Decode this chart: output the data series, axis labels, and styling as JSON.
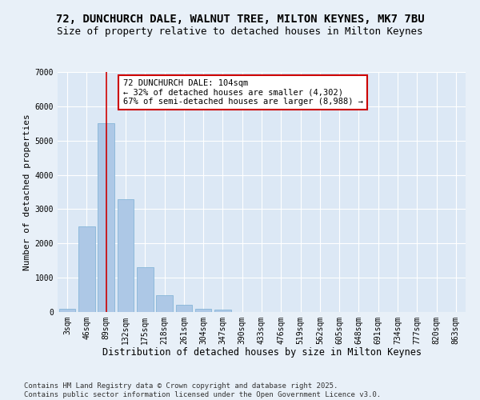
{
  "title": "72, DUNCHURCH DALE, WALNUT TREE, MILTON KEYNES, MK7 7BU",
  "subtitle": "Size of property relative to detached houses in Milton Keynes",
  "xlabel": "Distribution of detached houses by size in Milton Keynes",
  "ylabel": "Number of detached properties",
  "categories": [
    "3sqm",
    "46sqm",
    "89sqm",
    "132sqm",
    "175sqm",
    "218sqm",
    "261sqm",
    "304sqm",
    "347sqm",
    "390sqm",
    "433sqm",
    "476sqm",
    "519sqm",
    "562sqm",
    "605sqm",
    "648sqm",
    "691sqm",
    "734sqm",
    "777sqm",
    "820sqm",
    "863sqm"
  ],
  "values": [
    100,
    2500,
    5500,
    3300,
    1300,
    500,
    220,
    100,
    60,
    0,
    0,
    0,
    0,
    0,
    0,
    0,
    0,
    0,
    0,
    0,
    0
  ],
  "bar_color": "#adc8e6",
  "bar_edge_color": "#7aafd4",
  "vline_x": 2,
  "vline_color": "#cc0000",
  "annotation_line1": "72 DUNCHURCH DALE: 104sqm",
  "annotation_line2": "← 32% of detached houses are smaller (4,302)",
  "annotation_line3": "67% of semi-detached houses are larger (8,988) →",
  "annotation_box_color": "#ffffff",
  "annotation_box_edge_color": "#cc0000",
  "ylim": [
    0,
    7000
  ],
  "yticks": [
    0,
    1000,
    2000,
    3000,
    4000,
    5000,
    6000,
    7000
  ],
  "bg_color": "#e8f0f8",
  "plot_bg_color": "#dce8f5",
  "grid_color": "#ffffff",
  "footer": "Contains HM Land Registry data © Crown copyright and database right 2025.\nContains public sector information licensed under the Open Government Licence v3.0.",
  "title_fontsize": 10,
  "subtitle_fontsize": 9,
  "xlabel_fontsize": 8.5,
  "ylabel_fontsize": 8,
  "tick_fontsize": 7,
  "footer_fontsize": 6.5,
  "annot_fontsize": 7.5
}
